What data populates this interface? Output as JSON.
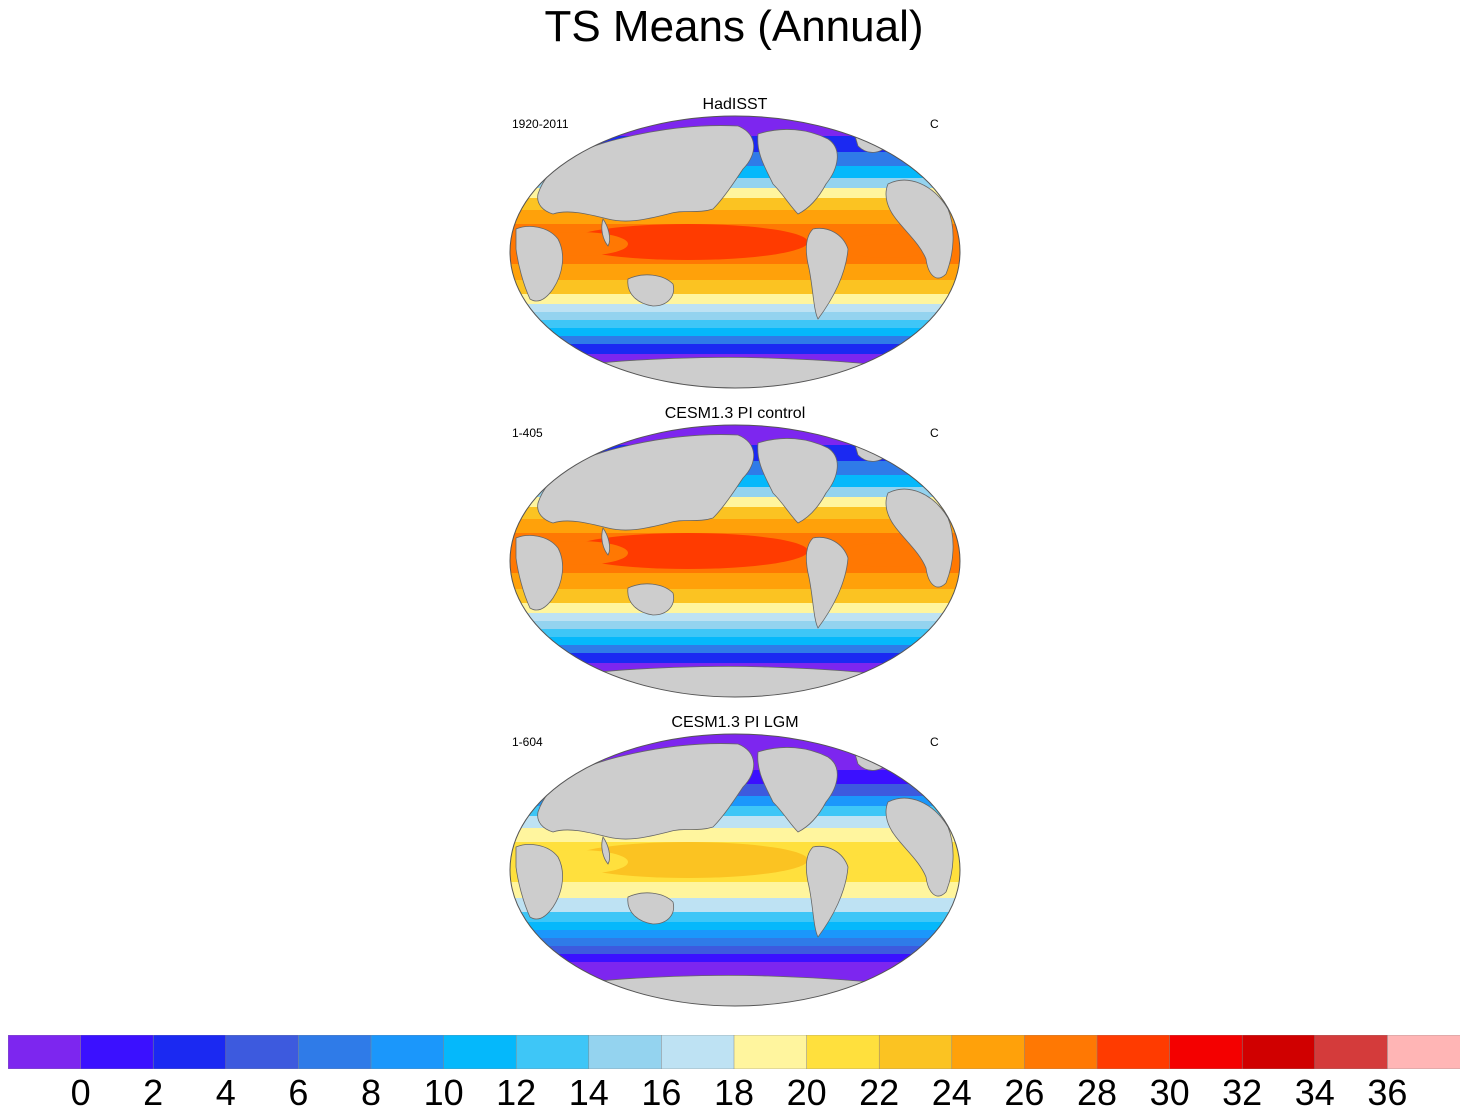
{
  "title": "TS Means (Annual)",
  "panels": [
    {
      "title": "HadISST",
      "left_label": "1920-2011",
      "right_label": "C",
      "warm_shift": 0
    },
    {
      "title": "CESM1.3 PI control",
      "left_label": "1-405",
      "right_label": "C",
      "warm_shift": 0
    },
    {
      "title": "CESM1.3 PI LGM",
      "left_label": "1-604",
      "right_label": "C",
      "warm_shift": -3
    }
  ],
  "colorbar": {
    "colors": [
      "#7d26ef",
      "#3b10ff",
      "#1b29f2",
      "#3d5ade",
      "#2f7be8",
      "#1b97fb",
      "#05b8fb",
      "#3ec6f7",
      "#94d3ef",
      "#bee2f3",
      "#fff59e",
      "#ffe03d",
      "#fbc322",
      "#ffa10a",
      "#ff7803",
      "#ff3b00",
      "#f40000",
      "#d00000",
      "#d43b3b",
      "#ffb5b5"
    ],
    "tick_labels": [
      "0",
      "2",
      "4",
      "6",
      "8",
      "10",
      "12",
      "14",
      "16",
      "18",
      "20",
      "22",
      "24",
      "26",
      "28",
      "30",
      "32",
      "34",
      "36"
    ]
  }
}
